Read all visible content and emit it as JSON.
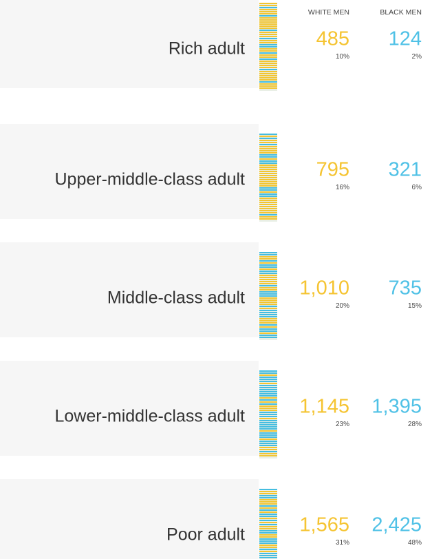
{
  "header": {
    "white": "WHITE MEN",
    "black": "BLACK MEN"
  },
  "rows": [
    {
      "label": "Rich adult",
      "white": "485",
      "white_pct": "10%",
      "black": "124",
      "black_pct": "2%"
    },
    {
      "label": "Upper-middle-class adult",
      "white": "795",
      "white_pct": "16%",
      "black": "321",
      "black_pct": "6%"
    },
    {
      "label": "Middle-class adult",
      "white": "1,010",
      "white_pct": "20%",
      "black": "735",
      "black_pct": "15%"
    },
    {
      "label": "Lower-middle-class adult",
      "white": "1,145",
      "white_pct": "23%",
      "black": "1,395",
      "black_pct": "28%"
    },
    {
      "label": "Poor adult",
      "white": "1,565",
      "white_pct": "31%",
      "black": "2,425",
      "black_pct": "48%"
    }
  ]
}
